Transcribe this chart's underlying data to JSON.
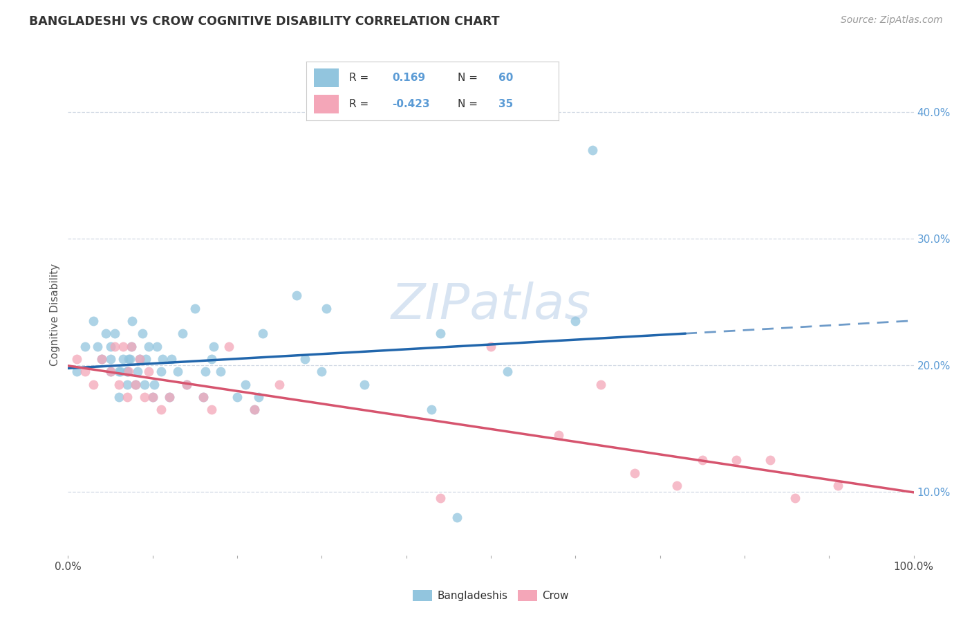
{
  "title": "BANGLADESHI VS CROW COGNITIVE DISABILITY CORRELATION CHART",
  "source": "Source: ZipAtlas.com",
  "ylabel": "Cognitive Disability",
  "xlim": [
    0,
    1.0
  ],
  "ylim": [
    0.05,
    0.43
  ],
  "yticks": [
    0.1,
    0.2,
    0.3,
    0.4
  ],
  "ytick_labels": [
    "10.0%",
    "20.0%",
    "30.0%",
    "40.0%"
  ],
  "xticks": [
    0.0,
    0.1,
    0.2,
    0.3,
    0.4,
    0.5,
    0.6,
    0.7,
    0.8,
    0.9,
    1.0
  ],
  "xtick_labels_show": [
    "0.0%",
    "",
    "",
    "",
    "",
    "",
    "",
    "",
    "",
    "",
    "100.0%"
  ],
  "blue_color": "#92c5de",
  "pink_color": "#f4a6b8",
  "blue_line_color": "#2166ac",
  "pink_line_color": "#d6546e",
  "right_axis_color": "#5b9bd5",
  "background_color": "#ffffff",
  "grid_color": "#d0d8e4",
  "legend_r1_prefix": "R =  ",
  "legend_r1_value": "0.169",
  "legend_r1_suffix": "  N = ",
  "legend_r1_n": "60",
  "legend_r2_prefix": "R = ",
  "legend_r2_value": "-0.423",
  "legend_r2_suffix": "  N = ",
  "legend_r2_n": "35",
  "blue_scatter_x": [
    0.01,
    0.02,
    0.03,
    0.035,
    0.04,
    0.045,
    0.05,
    0.05,
    0.05,
    0.055,
    0.06,
    0.06,
    0.062,
    0.065,
    0.07,
    0.07,
    0.07,
    0.072,
    0.073,
    0.075,
    0.076,
    0.08,
    0.082,
    0.085,
    0.088,
    0.09,
    0.092,
    0.095,
    0.1,
    0.102,
    0.105,
    0.11,
    0.112,
    0.12,
    0.122,
    0.13,
    0.135,
    0.14,
    0.15,
    0.16,
    0.162,
    0.17,
    0.172,
    0.18,
    0.2,
    0.21,
    0.22,
    0.225,
    0.23,
    0.27,
    0.28,
    0.3,
    0.305,
    0.35,
    0.43,
    0.44,
    0.46,
    0.52,
    0.6,
    0.62
  ],
  "blue_scatter_y": [
    0.195,
    0.215,
    0.235,
    0.215,
    0.205,
    0.225,
    0.195,
    0.205,
    0.215,
    0.225,
    0.175,
    0.195,
    0.195,
    0.205,
    0.185,
    0.195,
    0.195,
    0.205,
    0.205,
    0.215,
    0.235,
    0.185,
    0.195,
    0.205,
    0.225,
    0.185,
    0.205,
    0.215,
    0.175,
    0.185,
    0.215,
    0.195,
    0.205,
    0.175,
    0.205,
    0.195,
    0.225,
    0.185,
    0.245,
    0.175,
    0.195,
    0.205,
    0.215,
    0.195,
    0.175,
    0.185,
    0.165,
    0.175,
    0.225,
    0.255,
    0.205,
    0.195,
    0.245,
    0.185,
    0.165,
    0.225,
    0.08,
    0.195,
    0.235,
    0.37
  ],
  "pink_scatter_x": [
    0.01,
    0.02,
    0.03,
    0.04,
    0.05,
    0.055,
    0.06,
    0.065,
    0.07,
    0.072,
    0.075,
    0.08,
    0.085,
    0.09,
    0.095,
    0.1,
    0.11,
    0.12,
    0.14,
    0.16,
    0.17,
    0.19,
    0.22,
    0.25,
    0.44,
    0.5,
    0.58,
    0.63,
    0.67,
    0.72,
    0.75,
    0.79,
    0.83,
    0.86,
    0.91
  ],
  "pink_scatter_y": [
    0.205,
    0.195,
    0.185,
    0.205,
    0.195,
    0.215,
    0.185,
    0.215,
    0.175,
    0.195,
    0.215,
    0.185,
    0.205,
    0.175,
    0.195,
    0.175,
    0.165,
    0.175,
    0.185,
    0.175,
    0.165,
    0.215,
    0.165,
    0.185,
    0.095,
    0.215,
    0.145,
    0.185,
    0.115,
    0.105,
    0.125,
    0.125,
    0.125,
    0.095,
    0.105
  ],
  "watermark": "ZIPatlas"
}
